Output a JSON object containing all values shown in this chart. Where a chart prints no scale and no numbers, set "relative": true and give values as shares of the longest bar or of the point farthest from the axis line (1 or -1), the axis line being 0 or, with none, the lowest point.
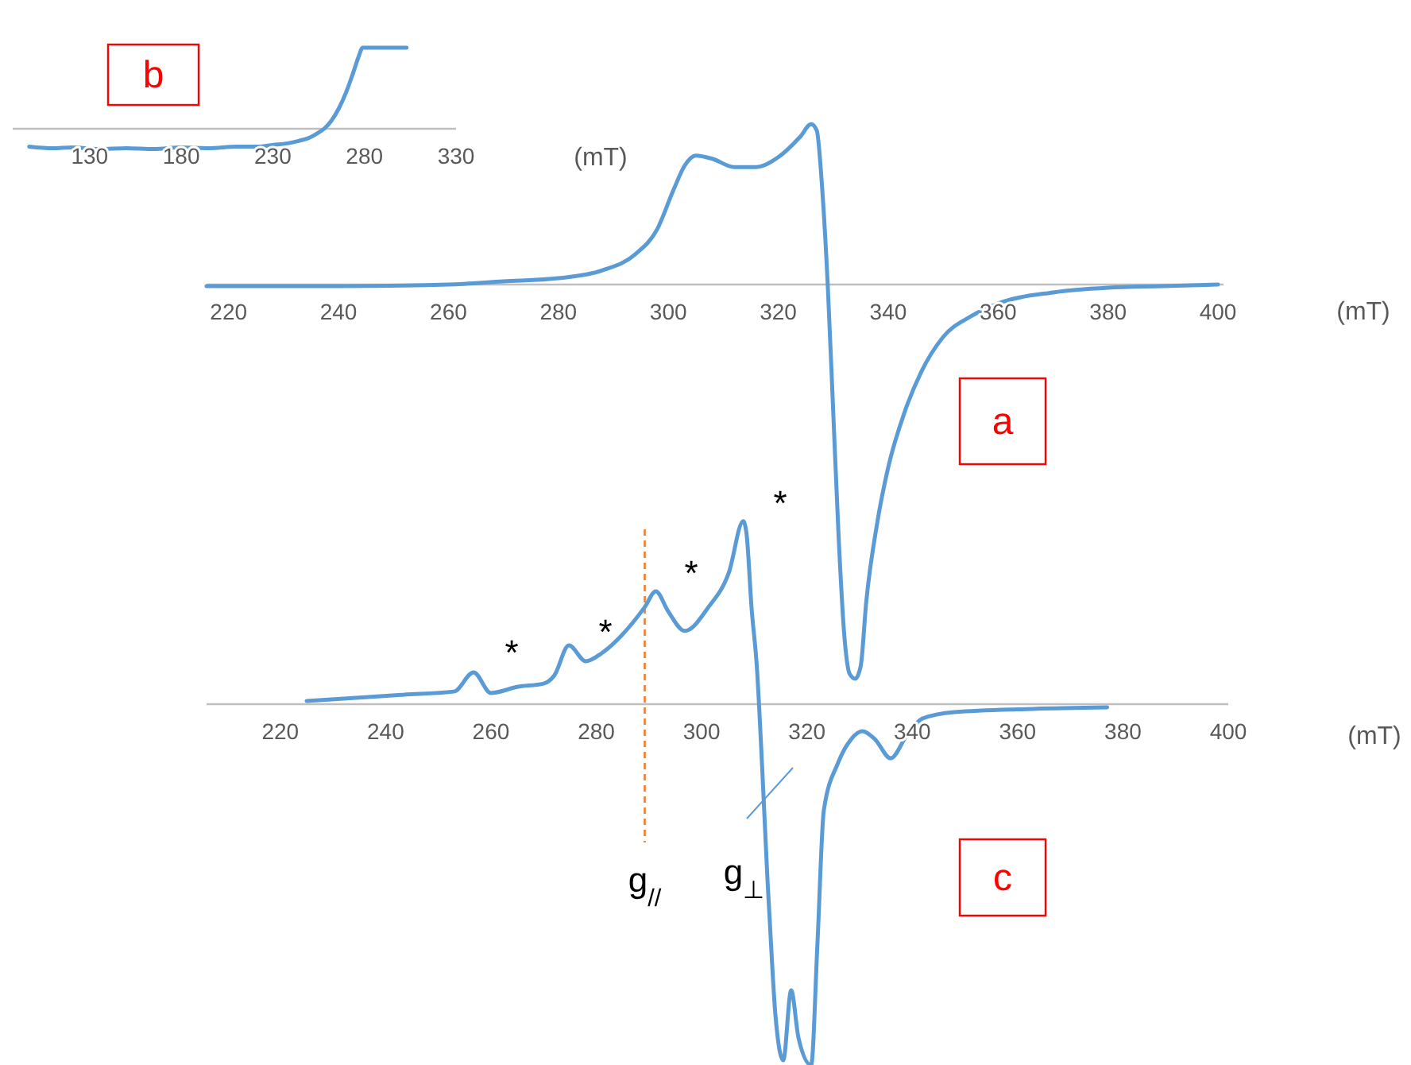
{
  "chart_data": [
    {
      "type": "line",
      "title": "b",
      "xlabel": "(mT)",
      "relative": true,
      "xlim": [
        88,
        330
      ],
      "xticks": [
        130,
        180,
        230,
        280,
        330
      ],
      "x": [
        97,
        110,
        120,
        135,
        150,
        165,
        180,
        195,
        210,
        222,
        230,
        238,
        244,
        250,
        254,
        258,
        262,
        266,
        270,
        274,
        277,
        279,
        290,
        303
      ],
      "series": [
        {
          "color": "#5b9bd5",
          "values": [
            -0.22,
            -0.24,
            -0.23,
            -0.25,
            -0.24,
            -0.25,
            -0.23,
            -0.24,
            -0.22,
            -0.22,
            -0.2,
            -0.18,
            -0.15,
            -0.11,
            -0.06,
            0,
            0.1,
            0.25,
            0.45,
            0.7,
            0.9,
            1,
            1,
            1
          ]
        }
      ]
    },
    {
      "type": "line",
      "title": "a",
      "xlabel": "(mT)",
      "relative": true,
      "xlim": [
        216,
        401
      ],
      "xticks": [
        220,
        240,
        260,
        280,
        300,
        320,
        340,
        360,
        380,
        400
      ],
      "x": [
        216,
        240,
        260,
        270,
        280,
        288,
        294,
        298,
        301,
        303,
        305,
        308,
        312,
        316,
        320,
        324,
        326,
        327,
        328,
        329,
        330,
        331,
        332,
        333,
        334,
        335,
        336,
        338,
        340,
        343,
        346,
        350,
        355,
        360,
        370,
        380,
        390,
        400
      ],
      "series": [
        {
          "color": "#5b9bd5",
          "values": [
            -0.004,
            -0.004,
            0,
            0.008,
            0.016,
            0.036,
            0.077,
            0.141,
            0.242,
            0.302,
            0.327,
            0.319,
            0.298,
            0.298,
            0.323,
            0.375,
            0.407,
            0.391,
            0.242,
            0,
            -0.323,
            -0.645,
            -0.887,
            -0.988,
            -1,
            -0.968,
            -0.806,
            -0.605,
            -0.464,
            -0.323,
            -0.222,
            -0.133,
            -0.081,
            -0.048,
            -0.02,
            -0.008,
            -0.004,
            0
          ]
        }
      ]
    },
    {
      "type": "line",
      "title": "c",
      "xlabel": "(mT)",
      "relative": true,
      "xlim": [
        206,
        400
      ],
      "xticks": [
        220,
        240,
        260,
        280,
        300,
        320,
        340,
        360,
        380,
        400
      ],
      "x": [
        225,
        235,
        243,
        253,
        256.7,
        260,
        265,
        270,
        272,
        274.8,
        278,
        281,
        284.7,
        289.2,
        291.3,
        293.7,
        296.8,
        301.3,
        305.2,
        307.9,
        308.5,
        309.5,
        310.5,
        311.5,
        312.5,
        313.5,
        314,
        315.5,
        317,
        318.4,
        320.8,
        322,
        323.2,
        325.9,
        328.4,
        330.5,
        332.9,
        335.9,
        338.9,
        341.9,
        348,
        363,
        377
      ],
      "series": [
        {
          "color": "#5b9bd5",
          "values": [
            0.009,
            0.018,
            0.026,
            0.035,
            0.088,
            0.031,
            0.048,
            0.057,
            0.079,
            0.163,
            0.119,
            0.141,
            0.189,
            0.269,
            0.313,
            0.256,
            0.203,
            0.269,
            0.366,
            0.507,
            0.476,
            0.264,
            0.101,
            -0.176,
            -0.485,
            -0.749,
            -0.859,
            -0.987,
            -0.793,
            -0.925,
            -1,
            -0.661,
            -0.295,
            -0.163,
            -0.097,
            -0.075,
            -0.097,
            -0.15,
            -0.088,
            -0.04,
            -0.022,
            -0.013,
            -0.009
          ]
        }
      ],
      "ref_lines": [
        {
          "axis": "x",
          "value": 289.2,
          "label": "g$_{//}$",
          "color": "#ed7d31",
          "line_style": "dashed"
        }
      ],
      "annotations": [
        "*",
        "*",
        "*",
        "*",
        "g$_{⊥}$"
      ]
    }
  ]
}
